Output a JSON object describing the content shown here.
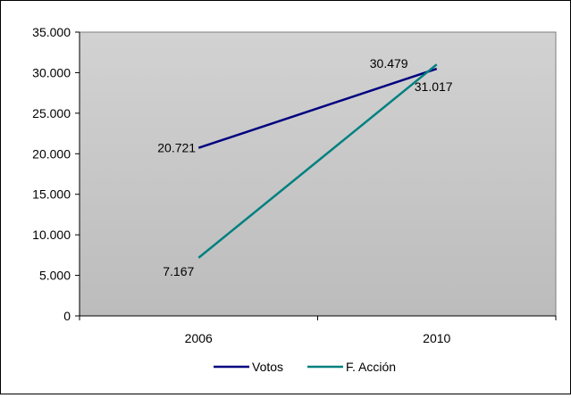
{
  "chart_data": {
    "type": "line",
    "title": "",
    "xlabel": "",
    "ylabel": "",
    "categories": [
      "2006",
      "2010"
    ],
    "ylim": [
      0,
      35000
    ],
    "y_ticks": [
      0,
      5000,
      10000,
      15000,
      20000,
      25000,
      30000,
      35000
    ],
    "y_tick_labels": [
      "0",
      "5.000",
      "10.000",
      "15.000",
      "20.000",
      "25.000",
      "30.000",
      "35.000"
    ],
    "grid": false,
    "plot_background": "gradient gray",
    "legend_position": "bottom",
    "series": [
      {
        "name": "Votos",
        "color": "#000080",
        "values": [
          20721,
          30479
        ],
        "labels": [
          "20.721",
          "30.479"
        ]
      },
      {
        "name": "F. Acción",
        "color": "#008080",
        "values": [
          7167,
          31017
        ],
        "labels": [
          "7.167",
          "31.017"
        ]
      }
    ]
  }
}
